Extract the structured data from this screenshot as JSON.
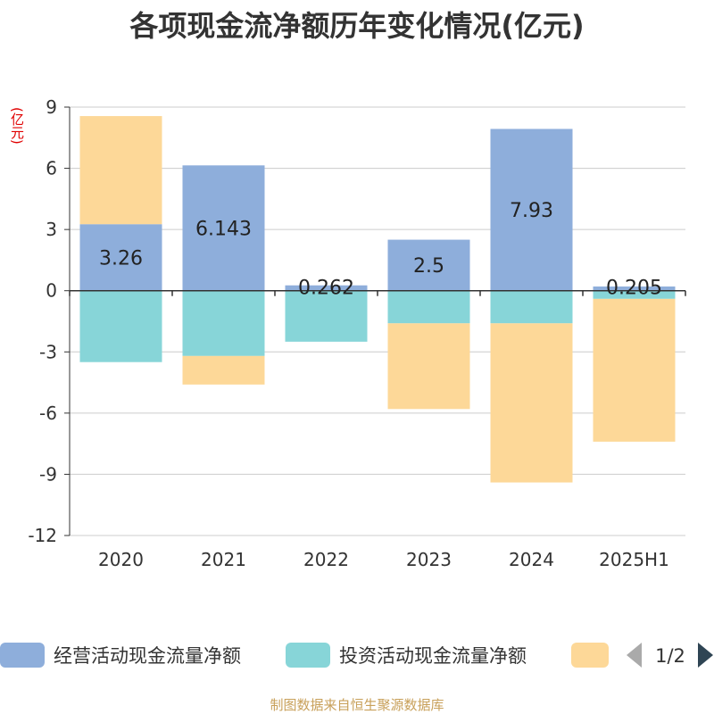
{
  "title": "各项现金流净额历年变化情况(亿元)",
  "unit_label": "(亿元)",
  "source_note": "制图数据来自恒生聚源数据库",
  "colors": {
    "operating": "#8eaedb",
    "investing": "#87d5d8",
    "financing": "#fdd898",
    "axis": "#333333",
    "grid": "#cccccc",
    "pager_active": "#2f4554",
    "pager_inactive": "#aaaaaa"
  },
  "legend": {
    "page": "1/2",
    "prev_icon": "triangle-left-icon",
    "next_icon": "triangle-right-icon"
  },
  "chart_data": {
    "type": "bar",
    "stacked": true,
    "categories": [
      "2020",
      "2021",
      "2022",
      "2023",
      "2024",
      "2025H1"
    ],
    "ylim": [
      -12,
      9
    ],
    "yticks": [
      9,
      6,
      3,
      0,
      -3,
      -6,
      -9,
      -12
    ],
    "ylabel": "(亿元)",
    "grid": true,
    "legend_position": "bottom",
    "series": [
      {
        "name": "经营活动现金流量净额",
        "color_key": "operating",
        "values": [
          3.26,
          6.143,
          0.262,
          2.5,
          7.93,
          0.205
        ],
        "labels": [
          "3.26",
          "6.143",
          "0.262",
          "2.5",
          "7.93",
          "0.205"
        ]
      },
      {
        "name": "投资活动现金流量净额",
        "color_key": "investing",
        "values": [
          -3.5,
          -3.2,
          -2.5,
          -1.6,
          -1.6,
          -0.4
        ]
      },
      {
        "name": "",
        "color_key": "financing",
        "values": [
          5.3,
          -1.4,
          0,
          -4.2,
          -7.8,
          -7.0
        ]
      }
    ]
  }
}
